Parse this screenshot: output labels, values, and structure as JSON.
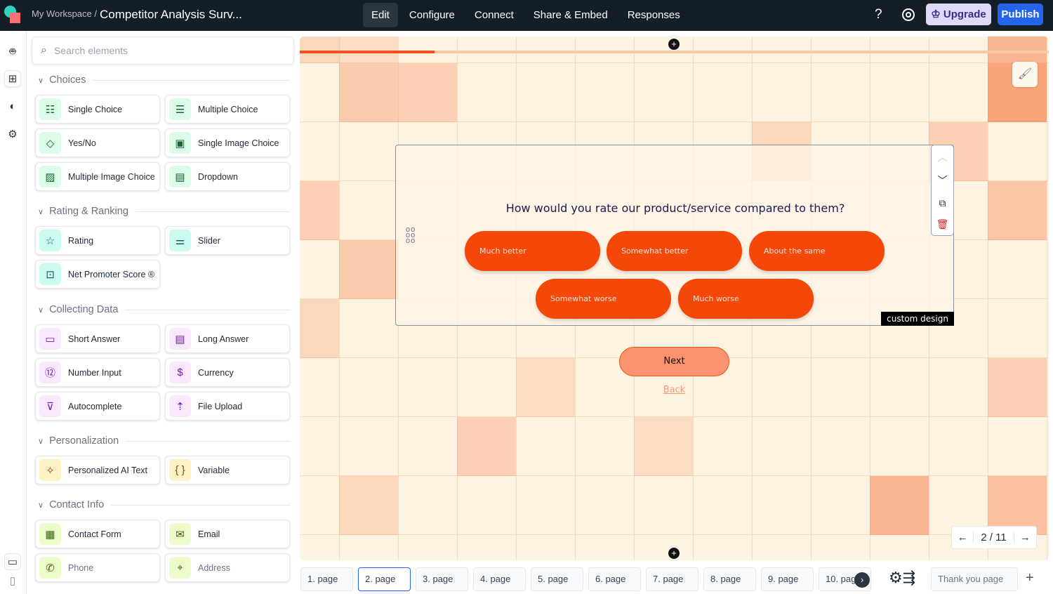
{
  "header": {
    "workspace": "My Workspace /",
    "title": "Competitor Analysis Surv...",
    "nav": [
      "Edit",
      "Configure",
      "Connect",
      "Share & Embed",
      "Responses"
    ],
    "help": "?",
    "upgrade": "Upgrade",
    "publish": "Publish"
  },
  "sidebar": {
    "search_placeholder": "Search elements",
    "sections": [
      {
        "title": "Choices",
        "tone": "g",
        "items": [
          {
            "label": "Single Choice",
            "icon": "list-check"
          },
          {
            "label": "Multiple Choice",
            "icon": "checklist"
          },
          {
            "label": "Yes/No",
            "icon": "diamond-split"
          },
          {
            "label": "Single Image Choice",
            "icon": "image-message"
          },
          {
            "label": "Multiple Image Choice",
            "icon": "images"
          },
          {
            "label": "Dropdown",
            "icon": "dropdown"
          }
        ]
      },
      {
        "title": "Rating & Ranking",
        "tone": "t",
        "items": [
          {
            "label": "Rating",
            "icon": "star"
          },
          {
            "label": "Slider",
            "icon": "sliders"
          },
          {
            "label": "Net Promoter Score ®",
            "icon": "star-box"
          }
        ]
      },
      {
        "title": "Collecting Data",
        "tone": "p",
        "items": [
          {
            "label": "Short Answer",
            "icon": "message-short"
          },
          {
            "label": "Long Answer",
            "icon": "message-long"
          },
          {
            "label": "Number Input",
            "icon": "number-12"
          },
          {
            "label": "Currency",
            "icon": "dollar"
          },
          {
            "label": "Autocomplete",
            "icon": "filter-list"
          },
          {
            "label": "File Upload",
            "icon": "folder-upload"
          }
        ]
      },
      {
        "title": "Personalization",
        "tone": "y",
        "items": [
          {
            "label": "Personalized AI Text",
            "icon": "magic-wand"
          },
          {
            "label": "Variable",
            "icon": "braces"
          }
        ]
      },
      {
        "title": "Contact Info",
        "tone": "l",
        "items": [
          {
            "label": "Contact Form",
            "icon": "contact-card"
          },
          {
            "label": "Email",
            "icon": "envelope"
          },
          {
            "label": "Phone",
            "icon": "phone",
            "dim": true
          },
          {
            "label": "Address",
            "icon": "map-pin",
            "dim": true
          }
        ]
      }
    ]
  },
  "canvas": {
    "progress_percent": 18,
    "question": "How would you rate our product/service compared to them?",
    "options": [
      "Much better",
      "Somewhat better",
      "About the same",
      "Somewhat worse",
      "Much worse"
    ],
    "badge": "custom design",
    "next": "Next",
    "back": "Back",
    "pager": {
      "current": "2 / 11"
    }
  },
  "colors": {
    "accent": "#f4470a",
    "publish": "#2563eb",
    "topbar": "#141e26"
  },
  "pages": {
    "tabs": [
      "1. page",
      "2. page",
      "3. page",
      "4. page",
      "5. page",
      "6. page",
      "7. page",
      "8. page",
      "9. page",
      "10. page"
    ],
    "active": 1,
    "thank_you": "Thank you page"
  }
}
